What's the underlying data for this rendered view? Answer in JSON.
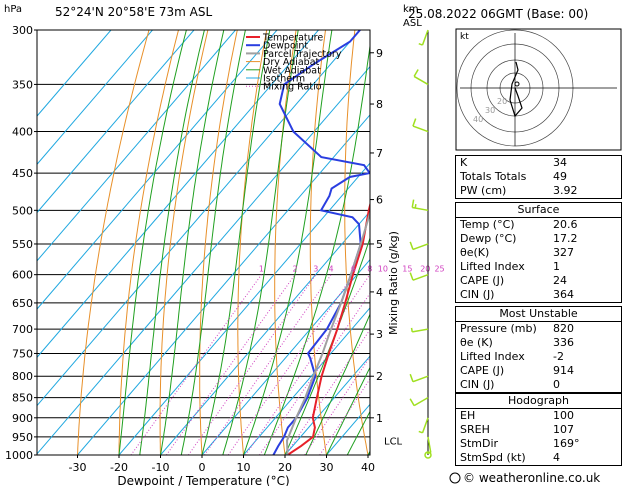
{
  "header": {
    "location": "52°24'N 20°58'E 73m ASL",
    "datetime": "25.08.2022 06GMT (Base: 00)",
    "p_unit": "hPa",
    "km_unit": "km",
    "asl_unit": "ASL"
  },
  "legend": [
    "Temperature",
    "Dewpoint",
    "Parcel Trajectory",
    "Dry Adiabat",
    "Wet Adiabat",
    "Isotherm",
    "Mixing Ratio"
  ],
  "colors": {
    "temperature": "#e8202a",
    "dewpoint": "#2a3ee0",
    "parcel": "#a0a0a0",
    "dry_adiabat": "#e8902a",
    "wet_adiabat": "#20a020",
    "isotherm": "#20a8e0",
    "mixing_ratio": "#d040c0",
    "wind": "#a0e020"
  },
  "chart_data": {
    "type": "line",
    "xlabel": "Dewpoint / Temperature (°C)",
    "ylabel_right": "Mixing Ratio (g/kg)",
    "x_ticks": [
      -30,
      -20,
      -10,
      0,
      10,
      20,
      30,
      40
    ],
    "pressure_levels": [
      300,
      350,
      400,
      450,
      500,
      550,
      600,
      650,
      700,
      750,
      800,
      850,
      900,
      950,
      1000
    ],
    "km_ticks": [
      {
        "km": "1",
        "p": 900
      },
      {
        "km": "2",
        "p": 800
      },
      {
        "km": "3",
        "p": 710
      },
      {
        "km": "4",
        "p": 630
      },
      {
        "km": "5",
        "p": 550
      },
      {
        "km": "6",
        "p": 485
      },
      {
        "km": "7",
        "p": 425
      },
      {
        "km": "8",
        "p": 370
      },
      {
        "km": "9",
        "p": 320
      }
    ],
    "lcl": {
      "label": "LCL",
      "p": 960
    },
    "mixing_ratio_labels": [
      "1",
      "2",
      "3",
      "4",
      "6",
      "8",
      "10",
      "15",
      "20",
      "25"
    ],
    "series": [
      {
        "name": "Temperature",
        "points": [
          [
            1000,
            20.6
          ],
          [
            975,
            22
          ],
          [
            950,
            23
          ],
          [
            925,
            21.5
          ],
          [
            900,
            19
          ],
          [
            850,
            15.8
          ],
          [
            800,
            12.5
          ],
          [
            750,
            9.5
          ],
          [
            700,
            6.5
          ],
          [
            650,
            3
          ],
          [
            600,
            -1
          ],
          [
            550,
            -5
          ],
          [
            500,
            -10.5
          ],
          [
            450,
            -16
          ],
          [
            400,
            -23
          ],
          [
            350,
            -32
          ],
          [
            300,
            -42
          ]
        ]
      },
      {
        "name": "Dewpoint",
        "points": [
          [
            1000,
            17.2
          ],
          [
            975,
            16.5
          ],
          [
            950,
            16
          ],
          [
            925,
            15
          ],
          [
            900,
            15
          ],
          [
            850,
            13.5
          ],
          [
            800,
            11
          ],
          [
            760,
            6
          ],
          [
            750,
            4.5
          ],
          [
            700,
            4
          ],
          [
            650,
            2
          ],
          [
            600,
            -1.5
          ],
          [
            550,
            -5.5
          ],
          [
            520,
            -10
          ],
          [
            510,
            -13
          ],
          [
            500,
            -22
          ],
          [
            480,
            -23
          ],
          [
            470,
            -24
          ],
          [
            455,
            -22
          ],
          [
            450,
            -18
          ],
          [
            440,
            -21
          ],
          [
            430,
            -33
          ],
          [
            400,
            -45
          ],
          [
            370,
            -54
          ],
          [
            350,
            -57
          ],
          [
            330,
            -54
          ],
          [
            310,
            -50
          ],
          [
            300,
            -50
          ]
        ]
      },
      {
        "name": "Parcel Trajectory",
        "points": [
          [
            1000,
            20.6
          ],
          [
            960,
            17.5
          ],
          [
            900,
            15
          ],
          [
            850,
            13
          ],
          [
            800,
            10.5
          ],
          [
            750,
            8
          ],
          [
            700,
            5
          ],
          [
            650,
            2
          ],
          [
            600,
            -1.5
          ],
          [
            550,
            -5.5
          ],
          [
            500,
            -10
          ],
          [
            450,
            -16
          ],
          [
            400,
            -23
          ],
          [
            350,
            -32
          ],
          [
            300,
            -42
          ]
        ]
      }
    ],
    "wind_barbs": [
      {
        "p": 1000,
        "flag": "calm"
      },
      {
        "p": 950,
        "dir": 170,
        "spd": 5
      },
      {
        "p": 900,
        "dir": 200,
        "spd": 5
      },
      {
        "p": 850,
        "dir": 240,
        "spd": 10
      },
      {
        "p": 800,
        "dir": 250,
        "spd": 10
      },
      {
        "p": 700,
        "dir": 260,
        "spd": 5
      },
      {
        "p": 600,
        "dir": 250,
        "spd": 10
      },
      {
        "p": 550,
        "dir": 250,
        "spd": 10
      },
      {
        "p": 500,
        "dir": 280,
        "spd": 15
      },
      {
        "p": 400,
        "dir": 290,
        "spd": 10
      },
      {
        "p": 350,
        "dir": 300,
        "spd": 10
      },
      {
        "p": 300,
        "dir": 200,
        "spd": 5
      }
    ]
  },
  "hodograph": {
    "label": "kt",
    "ring_labels": [
      "40",
      "30",
      "20"
    ]
  },
  "indices": {
    "k": {
      "label": "K",
      "value": "34"
    },
    "tt": {
      "label": "Totals Totals",
      "value": "49"
    },
    "pw": {
      "label": "PW (cm)",
      "value": "3.92"
    }
  },
  "surface": {
    "title": "Surface",
    "rows": [
      {
        "label": "Temp (°C)",
        "value": "20.6"
      },
      {
        "label": "Dewp (°C)",
        "value": "17.2"
      },
      {
        "label": "θe(K)",
        "value": "327"
      },
      {
        "label": "Lifted Index",
        "value": "1"
      },
      {
        "label": "CAPE (J)",
        "value": "24"
      },
      {
        "label": "CIN (J)",
        "value": "364"
      }
    ]
  },
  "most_unstable": {
    "title": "Most Unstable",
    "rows": [
      {
        "label": "Pressure (mb)",
        "value": "820"
      },
      {
        "label": "θe (K)",
        "value": "336"
      },
      {
        "label": "Lifted Index",
        "value": "-2"
      },
      {
        "label": "CAPE (J)",
        "value": "914"
      },
      {
        "label": "CIN (J)",
        "value": "0"
      }
    ]
  },
  "hodo_stats": {
    "title": "Hodograph",
    "rows": [
      {
        "label": "EH",
        "value": "100"
      },
      {
        "label": "SREH",
        "value": "107"
      },
      {
        "label": "StmDir",
        "value": "169°"
      },
      {
        "label": "StmSpd (kt)",
        "value": "4"
      }
    ]
  },
  "footer": {
    "copyright": "© weatheronline.co.uk"
  }
}
